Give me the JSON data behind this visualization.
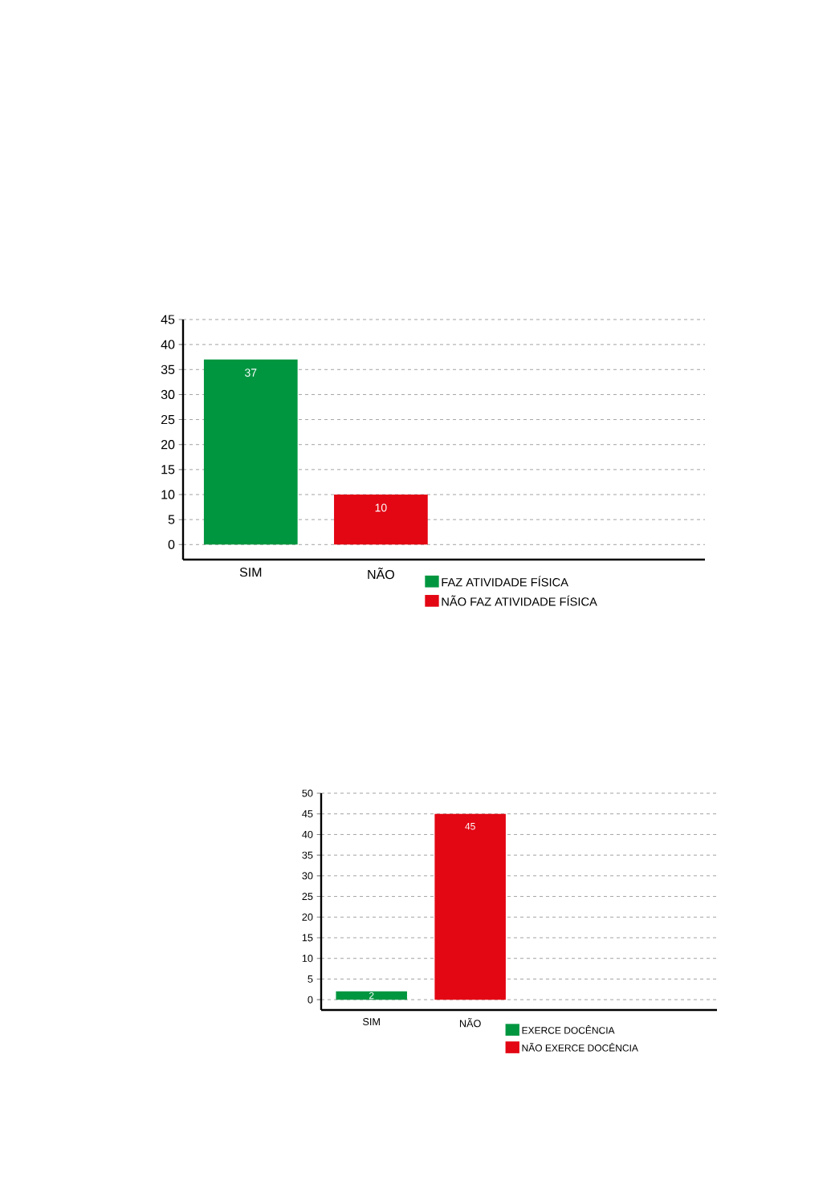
{
  "chart_data": [
    {
      "type": "bar",
      "categories": [
        "SIM",
        "NÃO"
      ],
      "series": [
        {
          "name": "FAZ ATIVIDADE FÍSICA",
          "color": "#009640",
          "values": [
            37,
            null
          ]
        },
        {
          "name": "NÃO FAZ ATIVIDADE FÍSICA",
          "color": "#e30613",
          "values": [
            null,
            10
          ]
        }
      ],
      "ylim": [
        -3,
        45
      ],
      "yticks": [
        0,
        5,
        10,
        15,
        20,
        25,
        30,
        35,
        40,
        45
      ],
      "grid": "y",
      "legend": "bottom",
      "data_labels": true
    },
    {
      "type": "bar",
      "categories": [
        "SIM",
        "NÃO"
      ],
      "series": [
        {
          "name": "EXERCE DOCÊNCIA",
          "color": "#009640",
          "values": [
            2,
            null
          ]
        },
        {
          "name": "NÃO EXERCE DOCÊNCIA",
          "color": "#e30613",
          "values": [
            null,
            45
          ]
        }
      ],
      "ylim": [
        -2.5,
        50
      ],
      "yticks": [
        0,
        5,
        10,
        15,
        20,
        25,
        30,
        35,
        40,
        45,
        50
      ],
      "grid": "y",
      "legend": "bottom",
      "data_labels": true
    }
  ]
}
